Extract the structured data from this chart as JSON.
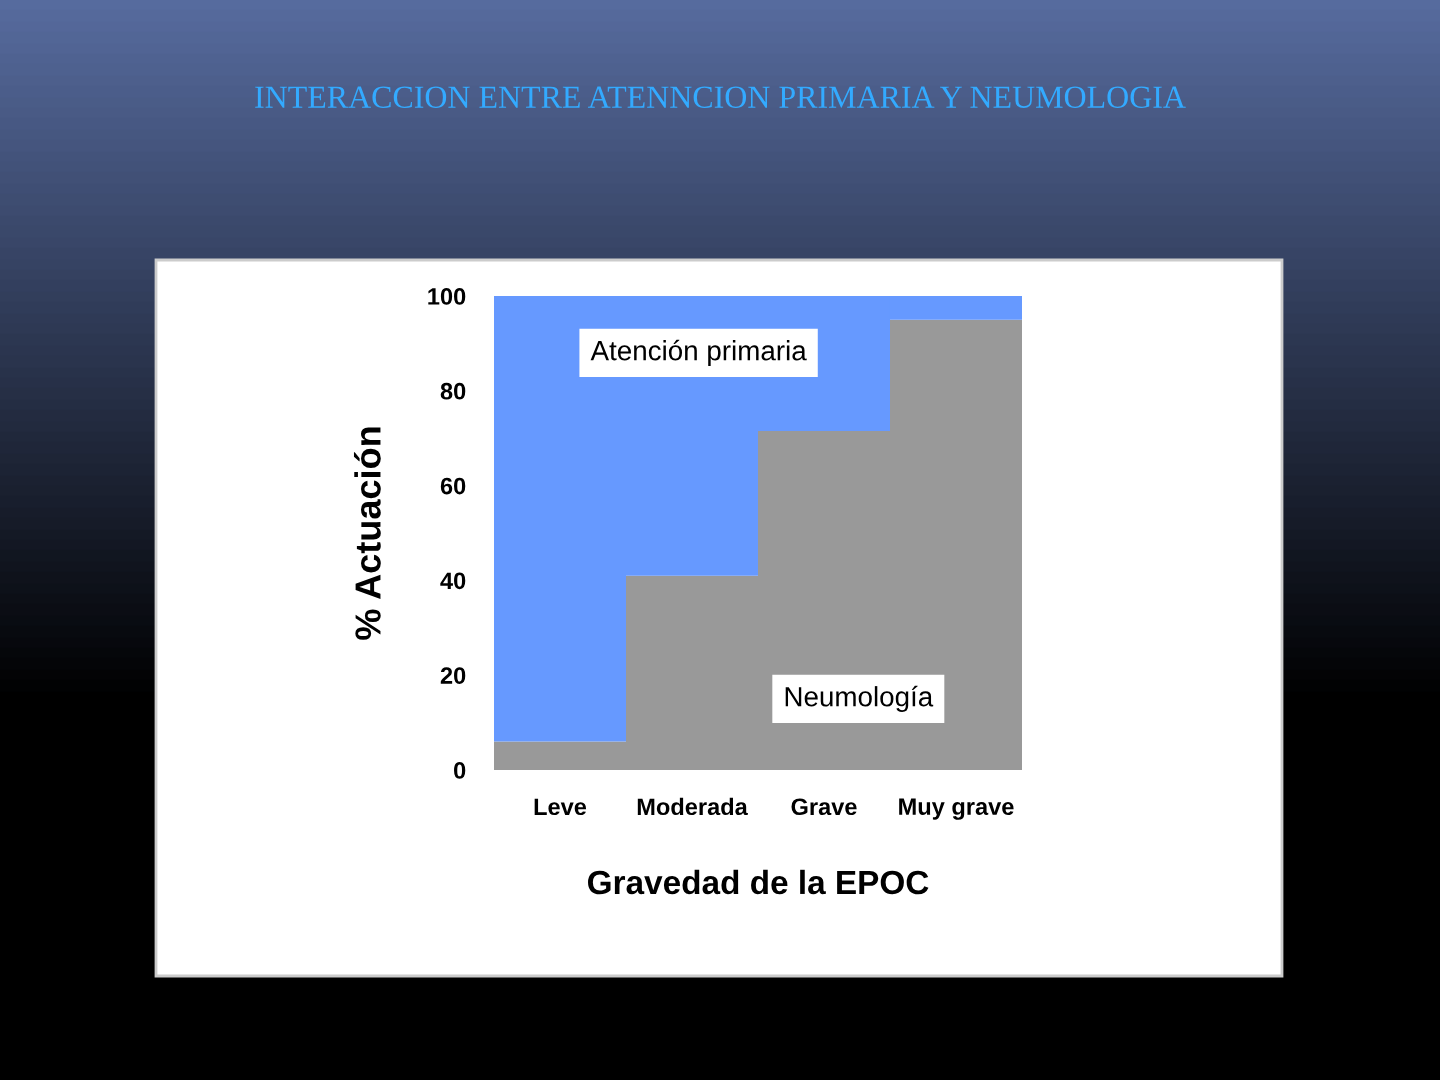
{
  "chart_data": {
    "type": "bar",
    "title": "INTERACCION ENTRE ATENNCION PRIMARIA Y NEUMOLOGIA",
    "xlabel": "Gravedad de la EPOC",
    "ylabel": "% Actuación",
    "categories": [
      "Leve",
      "Moderada",
      "Grave",
      "Muy grave"
    ],
    "stacked": true,
    "series": [
      {
        "name": "Neumología",
        "color": "#999999",
        "values": [
          6,
          41,
          71.5,
          95
        ]
      },
      {
        "name": "Atención primaria",
        "color": "#6699ff",
        "values": [
          94,
          59,
          28.5,
          5
        ]
      }
    ],
    "ylim": [
      0,
      100
    ],
    "yticks": [
      0,
      20,
      40,
      60,
      80,
      100
    ]
  }
}
